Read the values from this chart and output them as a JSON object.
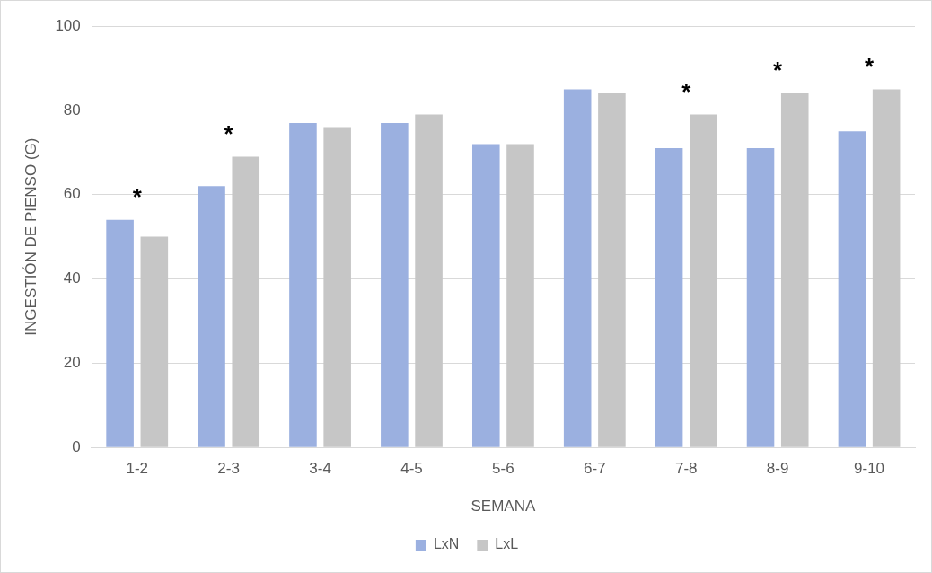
{
  "chart_data": {
    "type": "bar",
    "xlabel": "SEMANA",
    "ylabel": "INGESTIÓN DE PIENSO (G)",
    "categories": [
      "1-2",
      "2-3",
      "3-4",
      "4-5",
      "5-6",
      "6-7",
      "7-8",
      "8-9",
      "9-10"
    ],
    "series": [
      {
        "name": "LxN",
        "color": "#9bb0e0",
        "values": [
          54,
          62,
          77,
          77,
          72,
          85,
          71,
          71,
          75
        ]
      },
      {
        "name": "LxL",
        "color": "#c6c6c6",
        "values": [
          50,
          69,
          76,
          79,
          72,
          84,
          79,
          84,
          85
        ]
      }
    ],
    "ylim": [
      0,
      100
    ],
    "yticks": [
      0,
      20,
      40,
      60,
      80,
      100
    ],
    "grid": "y",
    "legend": "bottom",
    "annotations": [
      {
        "text": "*",
        "x": "1-2",
        "y": 54
      },
      {
        "text": "*",
        "x": "2-3",
        "y": 69
      },
      {
        "text": "*",
        "x": "7-8",
        "y": 79
      },
      {
        "text": "*",
        "x": "8-9",
        "y": 84
      },
      {
        "text": "*",
        "x": "9-10",
        "y": 85
      }
    ]
  }
}
